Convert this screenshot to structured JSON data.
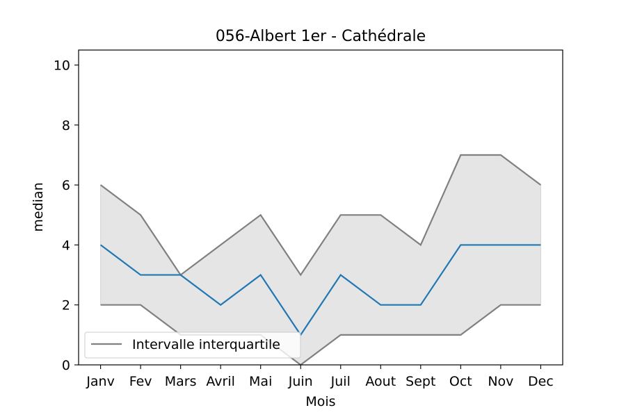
{
  "chart_data": {
    "type": "line",
    "title": "056-Albert 1er - Cathédrale",
    "xlabel": "Mois",
    "ylabel": "median",
    "categories": [
      "Janv",
      "Fev",
      "Mars",
      "Avril",
      "Mai",
      "Juin",
      "Juil",
      "Aout",
      "Sept",
      "Oct",
      "Nov",
      "Dec"
    ],
    "ylim": [
      0,
      10.5
    ],
    "yticks": [
      0,
      2,
      4,
      6,
      8,
      10
    ],
    "grid": false,
    "legend_position": "lower-left",
    "series": [
      {
        "role": "median",
        "color": "#1f77b4",
        "values": [
          4,
          3,
          3,
          2,
          3,
          1,
          3,
          2,
          2,
          4,
          4,
          4
        ]
      },
      {
        "role": "q1",
        "name": "Intervalle interquartile",
        "color": "#808080",
        "values": [
          2,
          2,
          1,
          1,
          1,
          0,
          1,
          1,
          1,
          1,
          2,
          2
        ]
      },
      {
        "role": "q3",
        "color": "#808080",
        "values": [
          6,
          5,
          3,
          4,
          5,
          3,
          5,
          5,
          4,
          7,
          7,
          6
        ]
      }
    ],
    "band_color": "#e5e5e5"
  }
}
